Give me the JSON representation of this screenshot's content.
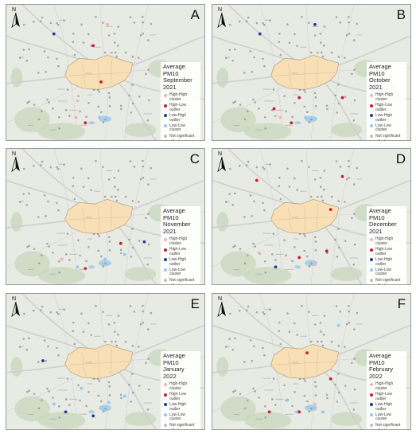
{
  "panels": [
    {
      "letter": "A",
      "title": "Average PM10 September 2021",
      "items": [
        {
          "label": "High-High cluster",
          "color": "#f4b2b5"
        },
        {
          "label": "High-Low outlier",
          "color": "#c81e28"
        },
        {
          "label": "Low-High outlier",
          "color": "#1f3a9e"
        },
        {
          "label": "Low-Low cluster",
          "color": "#8ecbee"
        },
        {
          "label": "Not significant",
          "color": "#bdbdbd"
        },
        {
          "label": "Krakow",
          "color": "#f9dfb5"
        }
      ]
    },
    {
      "letter": "B",
      "title": "Average PM10 October 2021",
      "items": [
        {
          "label": "High-High cluster",
          "color": "#f4b2b5"
        },
        {
          "label": "High-Low outlier",
          "color": "#c81e28"
        },
        {
          "label": "Low-High outlier",
          "color": "#1f3a9e"
        },
        {
          "label": "Low-Low cluster",
          "color": "#8ecbee"
        },
        {
          "label": "Not significant",
          "color": "#bdbdbd"
        },
        {
          "label": "Krakow",
          "color": "#f9dfb5"
        }
      ]
    },
    {
      "letter": "C",
      "title": "Average PM10 November 2021",
      "items": [
        {
          "label": "High-High cluster",
          "color": "#f4b2b5"
        },
        {
          "label": "High-Low outlier",
          "color": "#c81e28"
        },
        {
          "label": "Low-High outlier",
          "color": "#1f3a9e"
        },
        {
          "label": "Low-Low cluster",
          "color": "#8ecbee"
        },
        {
          "label": "Not significant",
          "color": "#bdbdbd"
        },
        {
          "label": "Krakow",
          "color": "#f9dfb5"
        }
      ]
    },
    {
      "letter": "D",
      "title": "Average PM10 December 2021",
      "items": [
        {
          "label": "High-High cluster",
          "color": "#f4b2b5"
        },
        {
          "label": "High-Low outlier",
          "color": "#c81e28"
        },
        {
          "label": "Low-High outlier",
          "color": "#1f3a9e"
        },
        {
          "label": "Low-Low cluster",
          "color": "#8ecbee"
        },
        {
          "label": "Not significant",
          "color": "#bdbdbd"
        },
        {
          "label": "Krakow",
          "color": "#f9dfb5"
        }
      ]
    },
    {
      "letter": "E",
      "title": "Average PM10 January 2022",
      "items": [
        {
          "label": "High-High cluster",
          "color": "#f4b2b5"
        },
        {
          "label": "High-Low outlier",
          "color": "#c81e28"
        },
        {
          "label": "Low-High outlier",
          "color": "#1f3a9e"
        },
        {
          "label": "Low-Low cluster",
          "color": "#8ecbee"
        },
        {
          "label": "Not significant",
          "color": "#bdbdbd"
        },
        {
          "label": "Krakow",
          "color": "#f9dfb5"
        }
      ]
    },
    {
      "letter": "F",
      "title": "Average PM10 February 2022",
      "items": [
        {
          "label": "High-High cluster",
          "color": "#f4b2b5"
        },
        {
          "label": "High-Low outlier",
          "color": "#c81e28"
        },
        {
          "label": "Low-High outlier",
          "color": "#1f3a9e"
        },
        {
          "label": "Low-Low cluster",
          "color": "#8ecbee"
        },
        {
          "label": "Not significant",
          "color": "#bdbdbd"
        },
        {
          "label": "Krakow",
          "color": "#f9dfb5"
        }
      ]
    }
  ],
  "north_label": "N",
  "icons": {
    "north_arrow": "north-arrow-icon"
  }
}
